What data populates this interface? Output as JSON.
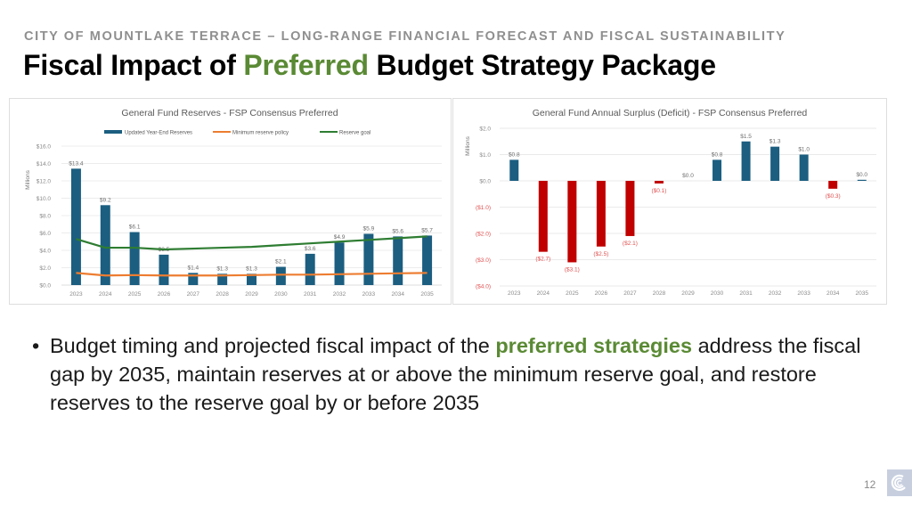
{
  "header": {
    "kicker": "CITY OF MOUNTLAKE TERRACE – LONG-RANGE FINANCIAL FORECAST AND FISCAL SUSTAINABILITY",
    "title_part1": "Fiscal Impact of ",
    "title_accent": "Preferred",
    "title_part2": " Budget Strategy Package",
    "accent_color": "#5a8a34"
  },
  "bullet": {
    "text_part1": "Budget timing and projected fiscal impact of the ",
    "text_accent": "preferred strategies",
    "text_part2": " address the fiscal gap by 2035, maintain reserves at or above the minimum reserve goal, and restore reserves to the reserve goal by or before 2035"
  },
  "footer": {
    "page_number": "12",
    "logo_icon": "city-logo-swirl"
  },
  "chart_data": [
    {
      "type": "bar",
      "title": "General Fund Reserves - FSP Consensus Preferred",
      "xlabel": "",
      "ylabel": "Millions",
      "ylim": [
        0,
        16
      ],
      "yticks": [
        0,
        2,
        4,
        6,
        8,
        10,
        12,
        14,
        16
      ],
      "ytick_labels": [
        "$0.0",
        "$2.0",
        "$4.0",
        "$6.0",
        "$8.0",
        "$10.0",
        "$12.0",
        "$14.0",
        "$16.0"
      ],
      "grid": true,
      "legend": "top-center",
      "categories": [
        "2023",
        "2024",
        "2025",
        "2026",
        "2027",
        "2028",
        "2029",
        "2030",
        "2031",
        "2032",
        "2033",
        "2034",
        "2035"
      ],
      "series": [
        {
          "name": "Updated Year-End Reserves",
          "kind": "bar",
          "color": "#1b5e80",
          "values": [
            13.4,
            9.2,
            6.1,
            3.5,
            1.4,
            1.3,
            1.3,
            2.1,
            3.6,
            4.9,
            5.9,
            5.6,
            5.7
          ],
          "labels": [
            "$13.4",
            "$9.2",
            "$6.1",
            "$3.5",
            "$1.4",
            "$1.3",
            "$1.3",
            "$2.1",
            "$3.6",
            "$4.9",
            "$5.9",
            "$5.6",
            "$5.7"
          ]
        },
        {
          "name": "Minimum reserve policy",
          "kind": "line",
          "color": "#ed7d31",
          "values": [
            1.4,
            1.1,
            1.15,
            1.1,
            1.1,
            1.1,
            1.15,
            1.2,
            1.2,
            1.25,
            1.3,
            1.35,
            1.4
          ]
        },
        {
          "name": "Reserve goal",
          "kind": "line",
          "color": "#2e7d32",
          "values": [
            5.3,
            4.3,
            4.3,
            4.1,
            4.2,
            4.3,
            4.4,
            4.6,
            4.8,
            5.0,
            5.2,
            5.4,
            5.6
          ]
        }
      ]
    },
    {
      "type": "bar",
      "title": "General Fund Annual Surplus (Deficit) - FSP Consensus Preferred",
      "xlabel": "",
      "ylabel": "Millions",
      "ylim": [
        -4,
        2
      ],
      "yticks": [
        2,
        1,
        0,
        -1,
        -2,
        -3,
        -4
      ],
      "ytick_labels": [
        "$2.0",
        "$1.0",
        "$0.0",
        "($1.0)",
        "($2.0)",
        "($3.0)",
        "($4.0)"
      ],
      "grid": true,
      "legend": "none",
      "positive_color": "#1b5e80",
      "negative_color": "#c00000",
      "negative_label_color": "#e05050",
      "categories": [
        "2023",
        "2024",
        "2025",
        "2026",
        "2027",
        "2028",
        "2029",
        "2030",
        "2031",
        "2032",
        "2033",
        "2034",
        "2035"
      ],
      "values": [
        0.8,
        -2.7,
        -3.1,
        -2.5,
        -2.1,
        -0.1,
        0.0,
        0.8,
        1.5,
        1.3,
        1.0,
        -0.3,
        0.04
      ],
      "labels": [
        "$0.8",
        "($2.7)",
        "($3.1)",
        "($2.5)",
        "($2.1)",
        "($0.1)",
        "$0.0",
        "$0.8",
        "$1.5",
        "$1.3",
        "$1.0",
        "($0.3)",
        "$0.0"
      ]
    }
  ]
}
